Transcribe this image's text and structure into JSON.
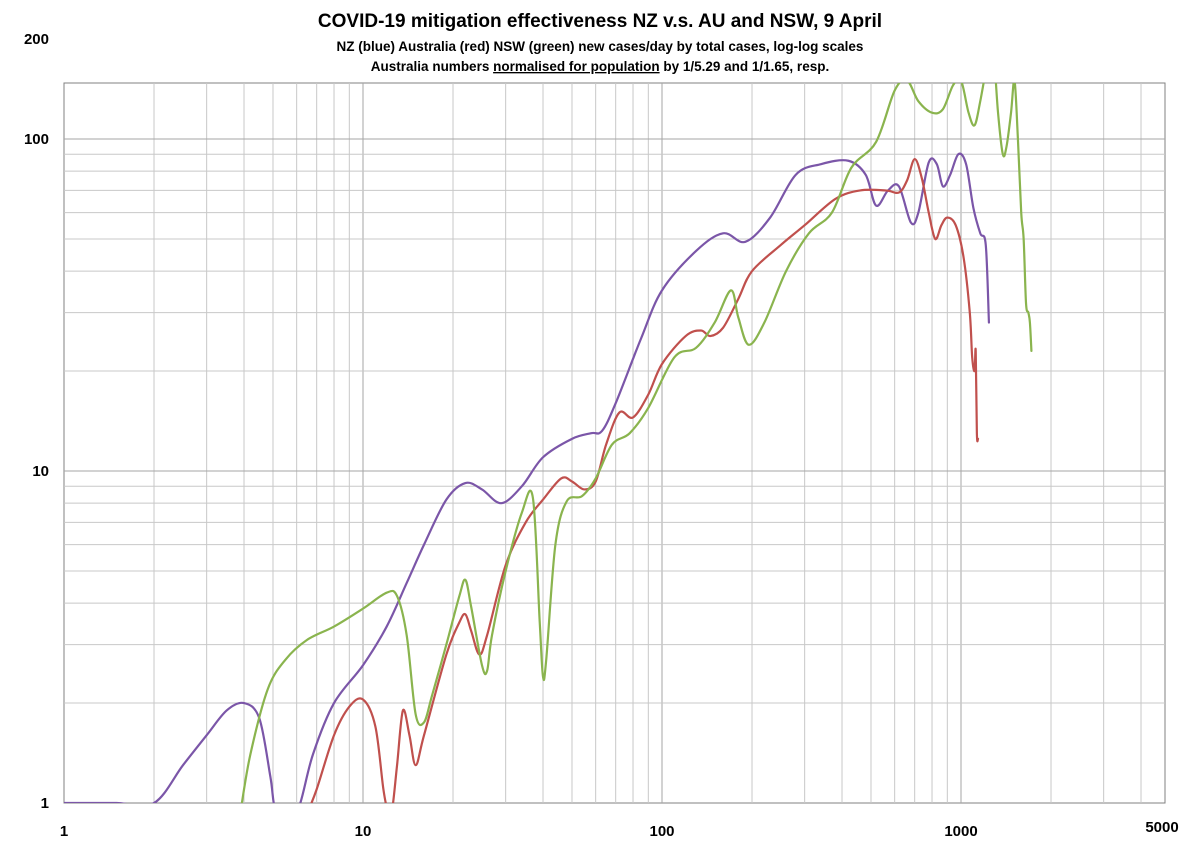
{
  "chart_data": {
    "type": "line",
    "title": "COVID-19 mitigation effectiveness NZ v.s. AU and NSW, 9 April",
    "subtitle_line1": "NZ (blue) Australia (red) NSW (green) new cases/day by total cases, log-log scales",
    "subtitle_line2_prefix": "Australia numbers ",
    "subtitle_line2_underlined": "normalised for population",
    "subtitle_line2_suffix": " by 1/5.29 and 1/1.65, resp.",
    "xscale": "log",
    "yscale": "log",
    "xlim": [
      1,
      5000
    ],
    "ylim": [
      1,
      200
    ],
    "x_tick_labels": [
      {
        "value": 1,
        "label": "1"
      },
      {
        "value": 10,
        "label": "10"
      },
      {
        "value": 100,
        "label": "100"
      },
      {
        "value": 1000,
        "label": "1000"
      },
      {
        "value": 5000,
        "label": "5000"
      }
    ],
    "y_tick_labels": [
      {
        "value": 1,
        "label": "1"
      },
      {
        "value": 10,
        "label": "10"
      },
      {
        "value": 100,
        "label": "100"
      },
      {
        "value": 200,
        "label": "200"
      }
    ],
    "grid": true,
    "series": [
      {
        "color": "#7b56a8",
        "points": [
          [
            1,
            1
          ],
          [
            1.2,
            1
          ],
          [
            1.5,
            1
          ],
          [
            2,
            1
          ],
          [
            2.5,
            1.3
          ],
          [
            3,
            1.6
          ],
          [
            3.5,
            1.9
          ],
          [
            4,
            2
          ],
          [
            4.5,
            1.8
          ],
          [
            4.9,
            1.2
          ],
          [
            5.1,
            0.95
          ],
          [
            5.6,
            0.93
          ],
          [
            6.1,
            0.97
          ],
          [
            6.8,
            1.4
          ],
          [
            8,
            2
          ],
          [
            10,
            2.6
          ],
          [
            12,
            3.4
          ],
          [
            14,
            4.6
          ],
          [
            16,
            6
          ],
          [
            19,
            8.2
          ],
          [
            22,
            9.2
          ],
          [
            25,
            8.8
          ],
          [
            29,
            8
          ],
          [
            34,
            9
          ],
          [
            40,
            11
          ],
          [
            50,
            12.5
          ],
          [
            58,
            13
          ],
          [
            63,
            13.2
          ],
          [
            70,
            16
          ],
          [
            85,
            25
          ],
          [
            100,
            35
          ],
          [
            130,
            46
          ],
          [
            160,
            52
          ],
          [
            190,
            49
          ],
          [
            230,
            58
          ],
          [
            280,
            78
          ],
          [
            340,
            84
          ],
          [
            420,
            86
          ],
          [
            480,
            78
          ],
          [
            520,
            63
          ],
          [
            570,
            70
          ],
          [
            620,
            72
          ],
          [
            680,
            56
          ],
          [
            720,
            60
          ],
          [
            780,
            85
          ],
          [
            830,
            84
          ],
          [
            870,
            72
          ],
          [
            920,
            78
          ],
          [
            980,
            90
          ],
          [
            1040,
            84
          ],
          [
            1100,
            62
          ],
          [
            1160,
            52
          ],
          [
            1210,
            48
          ],
          [
            1240,
            28
          ]
        ]
      },
      {
        "color": "#c0504d",
        "points": [
          [
            6.5,
            0.93
          ],
          [
            7,
            1.1
          ],
          [
            8,
            1.6
          ],
          [
            9,
            1.95
          ],
          [
            10,
            2.05
          ],
          [
            11,
            1.7
          ],
          [
            11.7,
            1.1
          ],
          [
            12.1,
            0.95
          ],
          [
            12.5,
            0.95
          ],
          [
            13,
            1.3
          ],
          [
            13.6,
            1.9
          ],
          [
            14.3,
            1.6
          ],
          [
            15,
            1.3
          ],
          [
            16,
            1.6
          ],
          [
            19,
            2.8
          ],
          [
            21,
            3.5
          ],
          [
            22,
            3.7
          ],
          [
            23,
            3.3
          ],
          [
            24.5,
            2.8
          ],
          [
            26,
            3.2
          ],
          [
            30,
            5.2
          ],
          [
            35,
            7
          ],
          [
            40,
            8.2
          ],
          [
            46,
            9.5
          ],
          [
            50,
            9.3
          ],
          [
            55,
            8.8
          ],
          [
            60,
            9.3
          ],
          [
            65,
            12
          ],
          [
            72,
            15
          ],
          [
            80,
            14.5
          ],
          [
            90,
            17
          ],
          [
            100,
            21
          ],
          [
            120,
            25.5
          ],
          [
            135,
            26.5
          ],
          [
            145,
            25.5
          ],
          [
            160,
            27
          ],
          [
            180,
            33
          ],
          [
            200,
            40
          ],
          [
            250,
            48
          ],
          [
            300,
            55
          ],
          [
            380,
            66
          ],
          [
            460,
            70
          ],
          [
            560,
            70
          ],
          [
            620,
            69
          ],
          [
            660,
            75
          ],
          [
            700,
            87
          ],
          [
            740,
            76
          ],
          [
            780,
            60
          ],
          [
            820,
            50
          ],
          [
            860,
            55
          ],
          [
            900,
            58
          ],
          [
            960,
            55
          ],
          [
            1020,
            44
          ],
          [
            1070,
            30
          ],
          [
            1090,
            22
          ],
          [
            1110,
            20
          ],
          [
            1120,
            23
          ],
          [
            1130,
            13
          ],
          [
            1140,
            12.5
          ]
        ]
      },
      {
        "color": "#8ab44e",
        "points": [
          [
            3.9,
            0.95
          ],
          [
            4.2,
            1.4
          ],
          [
            4.8,
            2.2
          ],
          [
            5.5,
            2.7
          ],
          [
            6.5,
            3.1
          ],
          [
            8,
            3.4
          ],
          [
            10,
            3.85
          ],
          [
            12,
            4.3
          ],
          [
            13,
            4.2
          ],
          [
            14,
            3.2
          ],
          [
            15,
            1.85
          ],
          [
            16,
            1.75
          ],
          [
            17,
            2.1
          ],
          [
            19,
            3
          ],
          [
            21,
            4.2
          ],
          [
            22,
            4.7
          ],
          [
            23,
            3.9
          ],
          [
            25,
            2.6
          ],
          [
            26,
            2.5
          ],
          [
            27,
            3.2
          ],
          [
            30,
            5
          ],
          [
            34,
            7.5
          ],
          [
            37,
            8.3
          ],
          [
            39,
            3.5
          ],
          [
            40,
            2.4
          ],
          [
            41,
            2.7
          ],
          [
            44,
            6
          ],
          [
            48,
            8.1
          ],
          [
            54,
            8.4
          ],
          [
            60,
            9.5
          ],
          [
            68,
            12
          ],
          [
            78,
            13
          ],
          [
            90,
            15.5
          ],
          [
            110,
            22
          ],
          [
            130,
            23.5
          ],
          [
            150,
            28
          ],
          [
            170,
            35
          ],
          [
            180,
            29
          ],
          [
            195,
            24
          ],
          [
            220,
            28
          ],
          [
            260,
            40
          ],
          [
            310,
            52
          ],
          [
            370,
            60
          ],
          [
            430,
            82
          ],
          [
            520,
            98
          ],
          [
            600,
            140
          ],
          [
            660,
            150
          ],
          [
            720,
            130
          ],
          [
            800,
            120
          ],
          [
            870,
            123
          ],
          [
            940,
            145
          ],
          [
            1000,
            150
          ],
          [
            1060,
            120
          ],
          [
            1110,
            110
          ],
          [
            1160,
            130
          ],
          [
            1240,
            180
          ],
          [
            1280,
            190
          ],
          [
            1330,
            120
          ],
          [
            1380,
            90
          ],
          [
            1420,
            95
          ],
          [
            1470,
            120
          ],
          [
            1510,
            150
          ],
          [
            1550,
            100
          ],
          [
            1590,
            60
          ],
          [
            1620,
            50
          ],
          [
            1650,
            32
          ],
          [
            1680,
            30
          ],
          [
            1700,
            28
          ],
          [
            1720,
            23
          ]
        ]
      }
    ]
  }
}
